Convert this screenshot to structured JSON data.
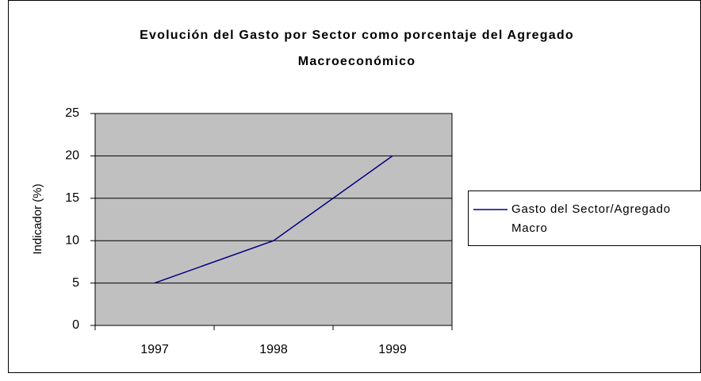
{
  "chart_data": {
    "type": "line",
    "title": "Evolución del Gasto por Sector como porcentaje del Agregado Macroeconómico",
    "y_label": "Indicador (%)",
    "categories": [
      "1997",
      "1998",
      "1999"
    ],
    "series": [
      {
        "name": "Gasto del Sector/Agregado Macro",
        "color": "#000080",
        "values": [
          5,
          10,
          20
        ]
      }
    ],
    "ylim": [
      0,
      25
    ],
    "yticks": [
      0,
      5,
      10,
      15,
      20,
      25
    ],
    "grid": true,
    "plot_background": "#c0c0c0",
    "legend": "right"
  }
}
